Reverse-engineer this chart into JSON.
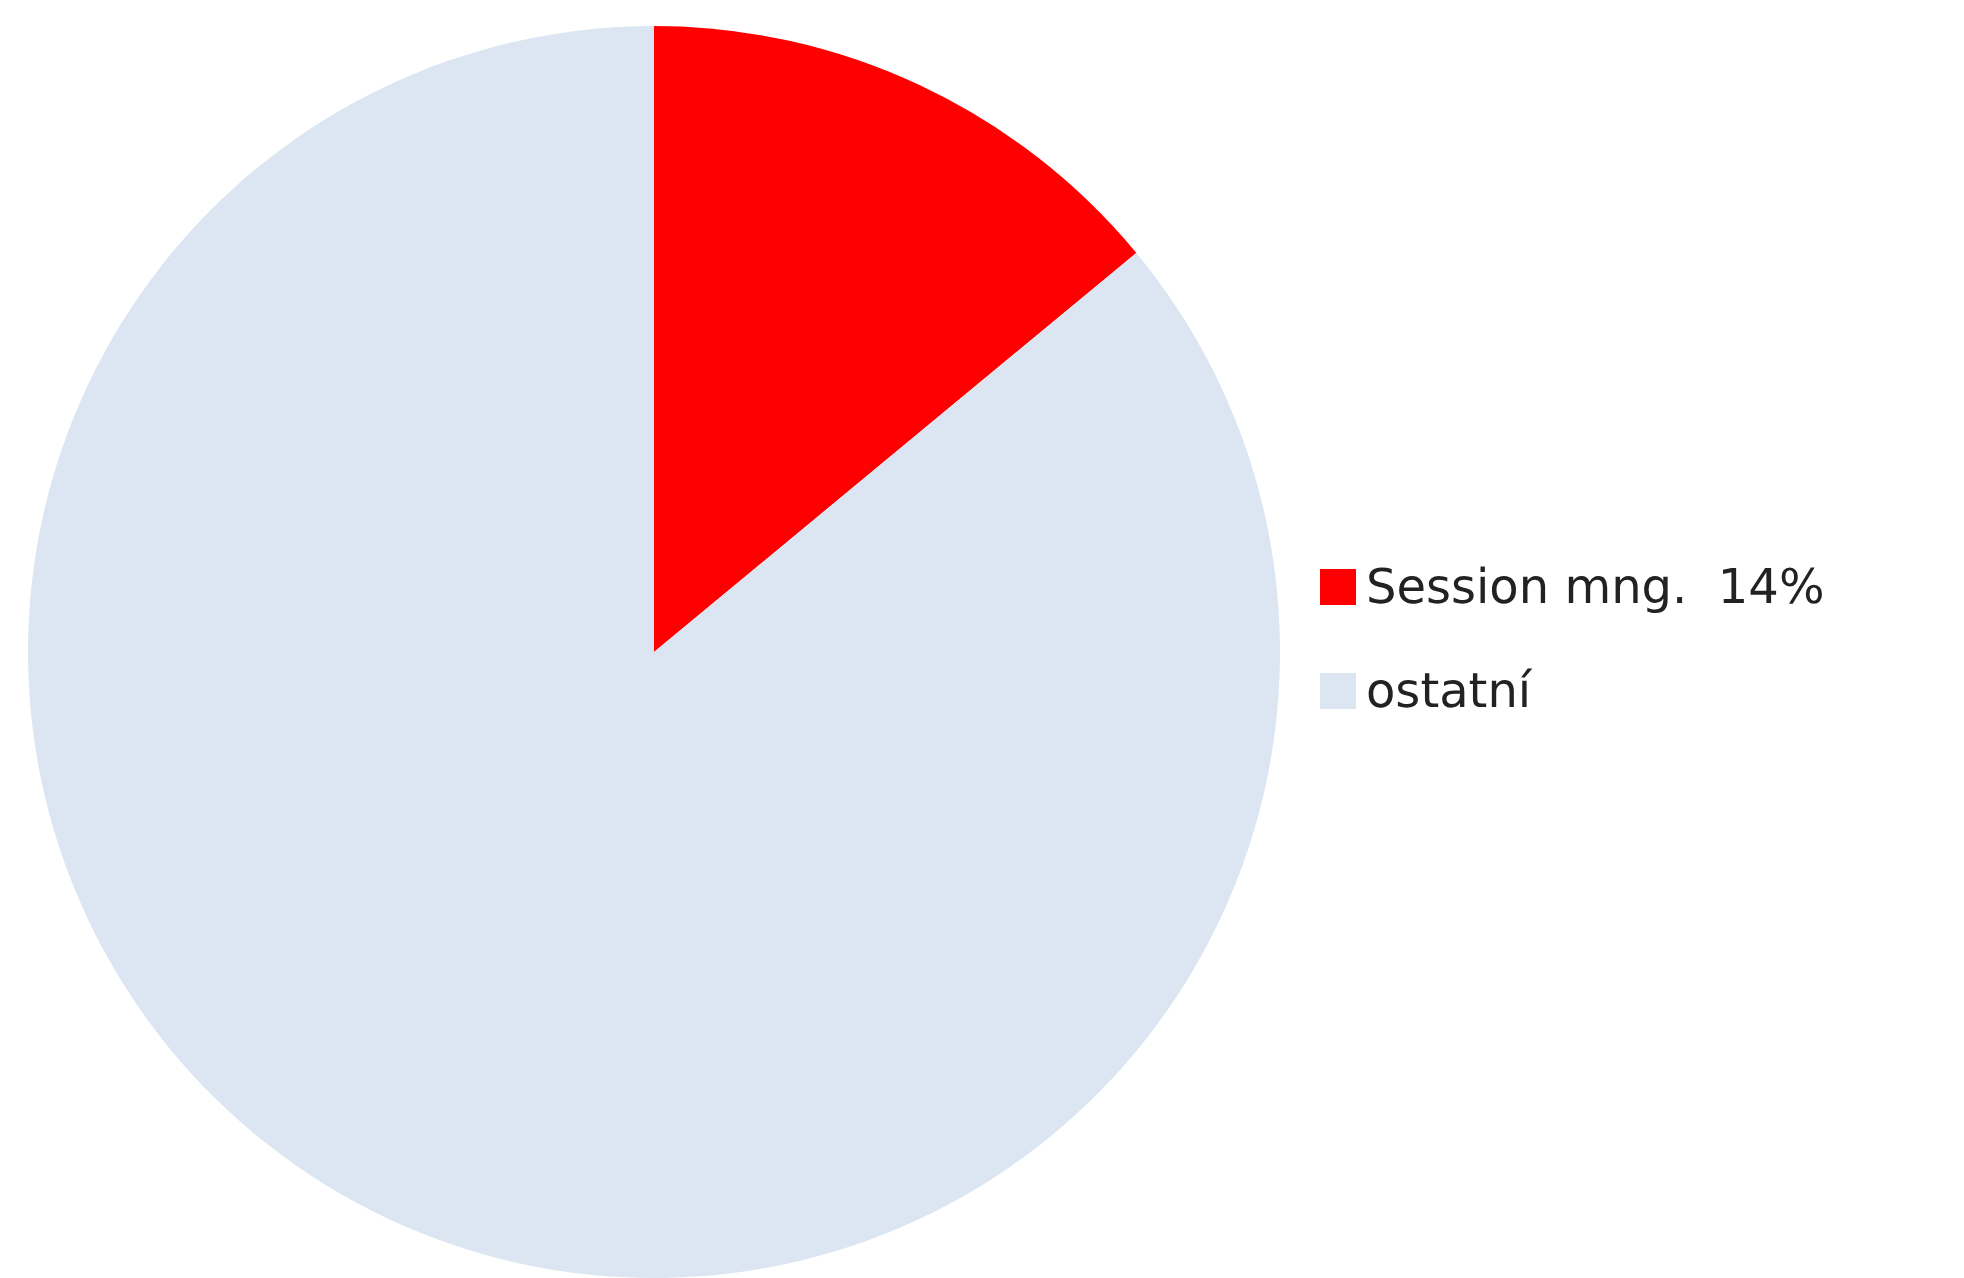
{
  "chart_data": {
    "type": "pie",
    "categories": [
      "Session mng.",
      "ostatní"
    ],
    "values": [
      14,
      86
    ],
    "value_labels": [
      "14%",
      null
    ],
    "colors": [
      "#ff0000",
      "#dce6f2"
    ],
    "legend": "right"
  }
}
